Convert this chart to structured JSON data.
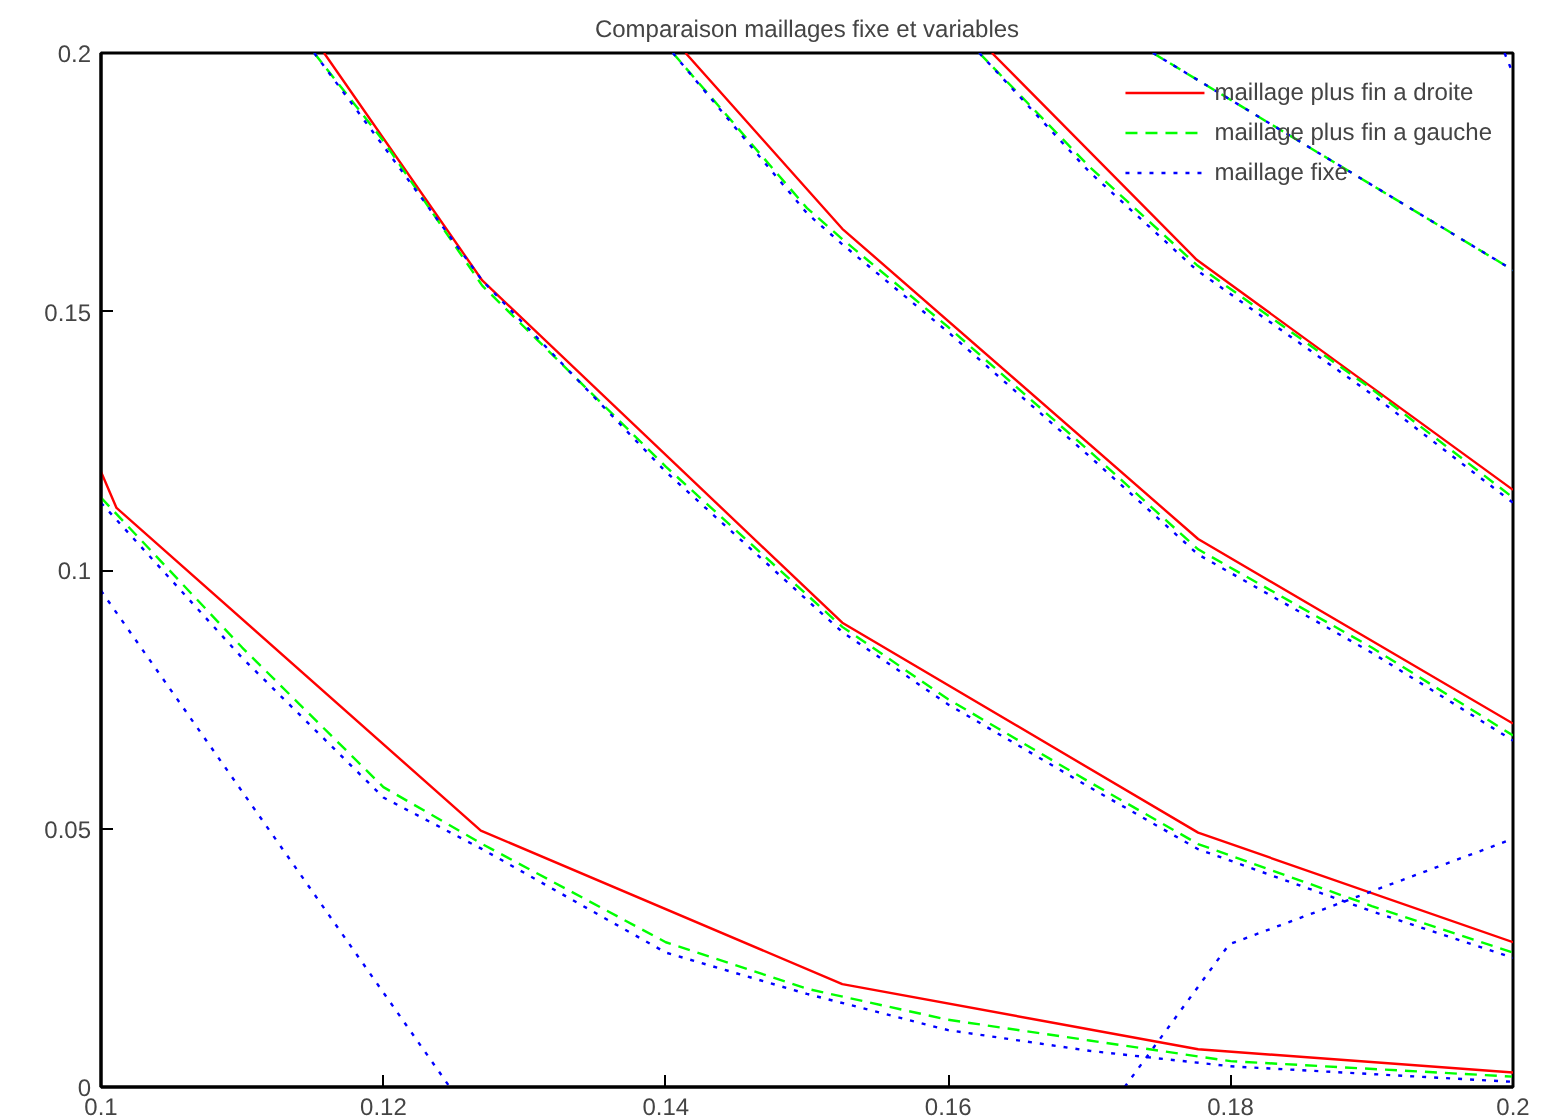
{
  "chart_data": {
    "type": "line",
    "title": "Comparaison maillages fixe et variables",
    "xlim": [
      0.1,
      0.2
    ],
    "ylim": [
      0,
      0.2
    ],
    "xticks": [
      0.1,
      0.12,
      0.14,
      0.16,
      0.18,
      0.2
    ],
    "yticks": [
      0,
      0.05,
      0.1,
      0.15,
      0.2
    ],
    "grid": false,
    "legend": "top right",
    "series": [
      {
        "name": "maillage plus fin a droite",
        "color": "#ff0000",
        "line_style": "solid",
        "x": [
          0.1,
          0.1011,
          0.1269,
          0.1525,
          0.1777,
          0.2,
          null,
          0.1158,
          0.127,
          0.1478,
          0.1525,
          0.1777,
          0.2,
          null,
          0.1414,
          0.1525,
          0.1777,
          0.2,
          null,
          0.1631,
          0.1776,
          0.2
        ],
        "values": [
          0.119,
          0.112,
          0.0496,
          0.0199,
          0.0073,
          0.0028,
          null,
          0.2,
          0.156,
          0.102,
          0.0898,
          0.0492,
          0.028,
          null,
          0.2,
          0.166,
          0.106,
          0.0703,
          null,
          0.2,
          0.16,
          0.1155
        ]
      },
      {
        "name": "maillage plus fin a gauche",
        "color": "#00ff00",
        "line_style": "dashed",
        "x": [
          0.1,
          0.11,
          0.12,
          0.127,
          0.14,
          0.15,
          0.16,
          0.17,
          0.18,
          0.2,
          null,
          0.1151,
          0.12,
          0.127,
          0.14,
          0.1525,
          0.16,
          0.17,
          0.1777,
          0.19,
          0.2,
          null,
          0.1405,
          0.15,
          0.1525,
          0.16,
          0.17,
          0.1777,
          0.19,
          0.2,
          null,
          0.1622,
          0.17,
          0.1776,
          0.19,
          0.2,
          null,
          0.1745,
          0.2
        ],
        "values": [
          0.114,
          0.085,
          0.058,
          0.047,
          0.028,
          0.019,
          0.013,
          0.009,
          0.005,
          0.002,
          null,
          0.2,
          0.183,
          0.155,
          0.12,
          0.089,
          0.075,
          0.059,
          0.047,
          0.035,
          0.026,
          null,
          0.2,
          0.17,
          0.164,
          0.147,
          0.123,
          0.104,
          0.085,
          0.068,
          null,
          0.2,
          0.178,
          0.159,
          0.135,
          0.114,
          null,
          0.2,
          0.158
        ]
      },
      {
        "name": "maillage fixe",
        "color": "#0000ff",
        "line_style": "dotted",
        "x": [
          0.1,
          0.11,
          0.12,
          0.127,
          0.14,
          0.15,
          0.16,
          0.17,
          0.18,
          0.2,
          null,
          0.1151,
          0.12,
          0.127,
          0.14,
          0.1525,
          0.16,
          0.17,
          0.1777,
          0.19,
          0.2,
          null,
          0.1405,
          0.15,
          0.1525,
          0.16,
          0.17,
          0.1777,
          0.19,
          0.2,
          null,
          0.1622,
          0.17,
          0.1776,
          0.19,
          0.2,
          null,
          0.1745,
          0.2,
          null,
          0.1994,
          0.2,
          null,
          0.1,
          0.1247,
          null,
          0.1725,
          0.1799,
          0.2
        ],
        "values": [
          0.113,
          0.083,
          0.056,
          0.046,
          0.026,
          0.018,
          0.011,
          0.007,
          0.004,
          0.001,
          null,
          0.2,
          0.182,
          0.156,
          0.119,
          0.088,
          0.074,
          0.058,
          0.046,
          0.034,
          0.025,
          null,
          0.2,
          0.169,
          0.163,
          0.146,
          0.122,
          0.103,
          0.084,
          0.067,
          null,
          0.2,
          0.177,
          0.158,
          0.134,
          0.113,
          null,
          0.2,
          0.158,
          null,
          0.2,
          0.196,
          null,
          0.096,
          0,
          null,
          0,
          0.0276,
          0.048
        ]
      }
    ]
  }
}
